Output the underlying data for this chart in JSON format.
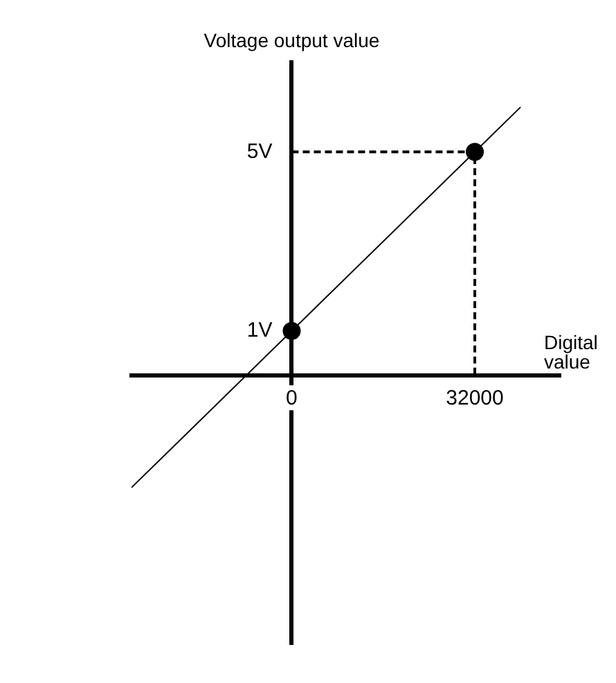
{
  "chart_data": {
    "type": "line",
    "xlabel": "Digital value",
    "ylabel": "Voltage output value",
    "xlim": [
      -28000,
      47000
    ],
    "ylim": [
      -6,
      7
    ],
    "xticks": [
      {
        "value": 0,
        "label": "0"
      },
      {
        "value": 32000,
        "label": "32000"
      }
    ],
    "yticks": [
      {
        "value": 1,
        "label": "1V"
      },
      {
        "value": 5,
        "label": "5V"
      }
    ],
    "grid": false,
    "legend": false,
    "series": [
      {
        "type": "line",
        "color": "#000000",
        "x": [
          -28000,
          0,
          32000,
          40000
        ],
        "values": [
          -2.5,
          1,
          5,
          6
        ],
        "marker": "none",
        "line_style": "solid"
      },
      {
        "type": "scatter",
        "color": "#000000",
        "x": [
          0,
          32000
        ],
        "values": [
          1,
          5
        ],
        "marker": "circle"
      },
      {
        "type": "line",
        "color": "#000000",
        "x": [
          0,
          32000,
          32000
        ],
        "values": [
          5,
          5,
          0
        ],
        "marker": "none",
        "line_style": "dashed"
      }
    ]
  }
}
